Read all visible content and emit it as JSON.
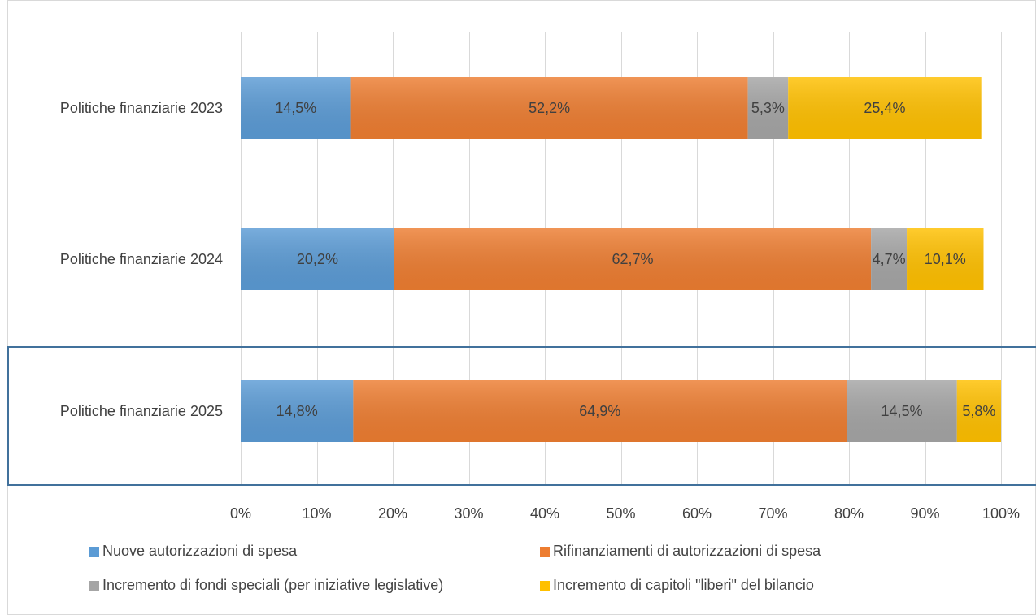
{
  "chart_data": {
    "type": "bar",
    "orientation": "horizontal",
    "stacked": "100%",
    "categories": [
      "Politiche finanziarie 2023",
      "Politiche finanziarie 2024",
      "Politiche finanziarie 2025"
    ],
    "series": [
      {
        "name": "Nuove autorizzazioni di spesa",
        "color": "#5B9BD5",
        "values": [
          14.5,
          20.2,
          14.8
        ],
        "labels": [
          "14,5%",
          "20,2%",
          "14,8%"
        ]
      },
      {
        "name": "Rifinanziamenti di autorizzazioni di spesa",
        "color": "#ED7D31",
        "values": [
          52.2,
          62.7,
          64.9
        ],
        "labels": [
          "52,2%",
          "62,7%",
          "64,9%"
        ]
      },
      {
        "name": "Incremento di fondi speciali (per iniziative legislative)",
        "color": "#A5A5A5",
        "values": [
          5.3,
          4.7,
          14.5
        ],
        "labels": [
          "5,3%",
          "4,7%",
          "14,5%"
        ]
      },
      {
        "name": "Incremento di capitoli \"liberi\" del bilancio",
        "color": "#FFC000",
        "values": [
          25.4,
          10.1,
          5.8
        ],
        "labels": [
          "25,4%",
          "10,1%",
          "5,8%"
        ]
      }
    ],
    "xlim": [
      0,
      100
    ],
    "xticks": [
      "0%",
      "10%",
      "20%",
      "30%",
      "40%",
      "50%",
      "60%",
      "70%",
      "80%",
      "90%",
      "100%"
    ],
    "grid": true,
    "legend": "bottom",
    "highlighted_category": "Politiche finanziarie 2025"
  }
}
